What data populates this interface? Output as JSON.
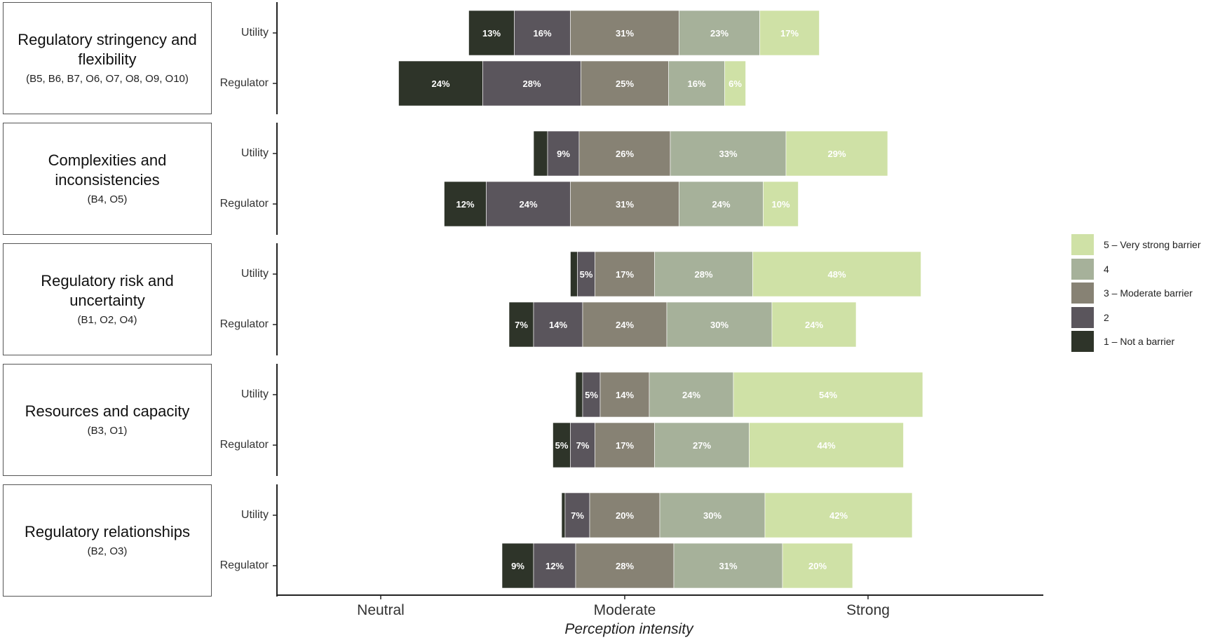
{
  "colors": [
    "#2e3429",
    "#5a555c",
    "#878274",
    "#a6b19a",
    "#cfe1a6"
  ],
  "legend": [
    {
      "label": "5 – Very strong barrier",
      "color": "#cfe1a6"
    },
    {
      "label": "4",
      "color": "#a6b19a"
    },
    {
      "label": "3 – Moderate barrier",
      "color": "#878274"
    },
    {
      "label": "2",
      "color": "#5a555c"
    },
    {
      "label": "1 – Not a barrier",
      "color": "#2e3429"
    }
  ],
  "groups": [
    {
      "title": "Regulatory stringency and flexibility",
      "codes": "(B5, B6, B7, O6, O7, O8, O9, O10)"
    },
    {
      "title": "Complexities and inconsistencies",
      "codes": "(B4, O5)"
    },
    {
      "title": "Regulatory risk and uncertainty",
      "codes": "(B1, O2, O4)"
    },
    {
      "title": "Resources and capacity",
      "codes": "(B3, O1)"
    },
    {
      "title": "Regulatory relationships",
      "codes": "(B2, O3)"
    }
  ],
  "chart_data": {
    "type": "bar",
    "orientation": "horizontal",
    "stacked": true,
    "xlabel": "Perception intensity",
    "x_ticks": [
      "Neutral",
      "Moderate",
      "Strong"
    ],
    "series_names": [
      "1 – Not a barrier",
      "2",
      "3 – Moderate barrier",
      "4",
      "5 – Very strong barrier"
    ],
    "rows": [
      {
        "group": "Regulatory stringency and flexibility",
        "respondent": "Utility",
        "values": [
          13,
          16,
          31,
          23,
          17
        ]
      },
      {
        "group": "Regulatory stringency and flexibility",
        "respondent": "Regulator",
        "values": [
          24,
          28,
          25,
          16,
          6
        ]
      },
      {
        "group": "Complexities and inconsistencies",
        "respondent": "Utility",
        "values": [
          4,
          9,
          26,
          33,
          29
        ]
      },
      {
        "group": "Complexities and inconsistencies",
        "respondent": "Regulator",
        "values": [
          12,
          24,
          31,
          24,
          10
        ]
      },
      {
        "group": "Regulatory risk and uncertainty",
        "respondent": "Utility",
        "values": [
          2,
          5,
          17,
          28,
          48
        ]
      },
      {
        "group": "Regulatory risk and uncertainty",
        "respondent": "Regulator",
        "values": [
          7,
          14,
          24,
          30,
          24
        ]
      },
      {
        "group": "Resources and capacity",
        "respondent": "Utility",
        "values": [
          2,
          5,
          14,
          24,
          54
        ]
      },
      {
        "group": "Resources and capacity",
        "respondent": "Regulator",
        "values": [
          5,
          7,
          17,
          27,
          44
        ]
      },
      {
        "group": "Regulatory relationships",
        "respondent": "Utility",
        "values": [
          1,
          7,
          20,
          30,
          42
        ]
      },
      {
        "group": "Regulatory relationships",
        "respondent": "Regulator",
        "values": [
          9,
          12,
          28,
          31,
          20
        ]
      }
    ],
    "min_labeled_percent": 5
  }
}
